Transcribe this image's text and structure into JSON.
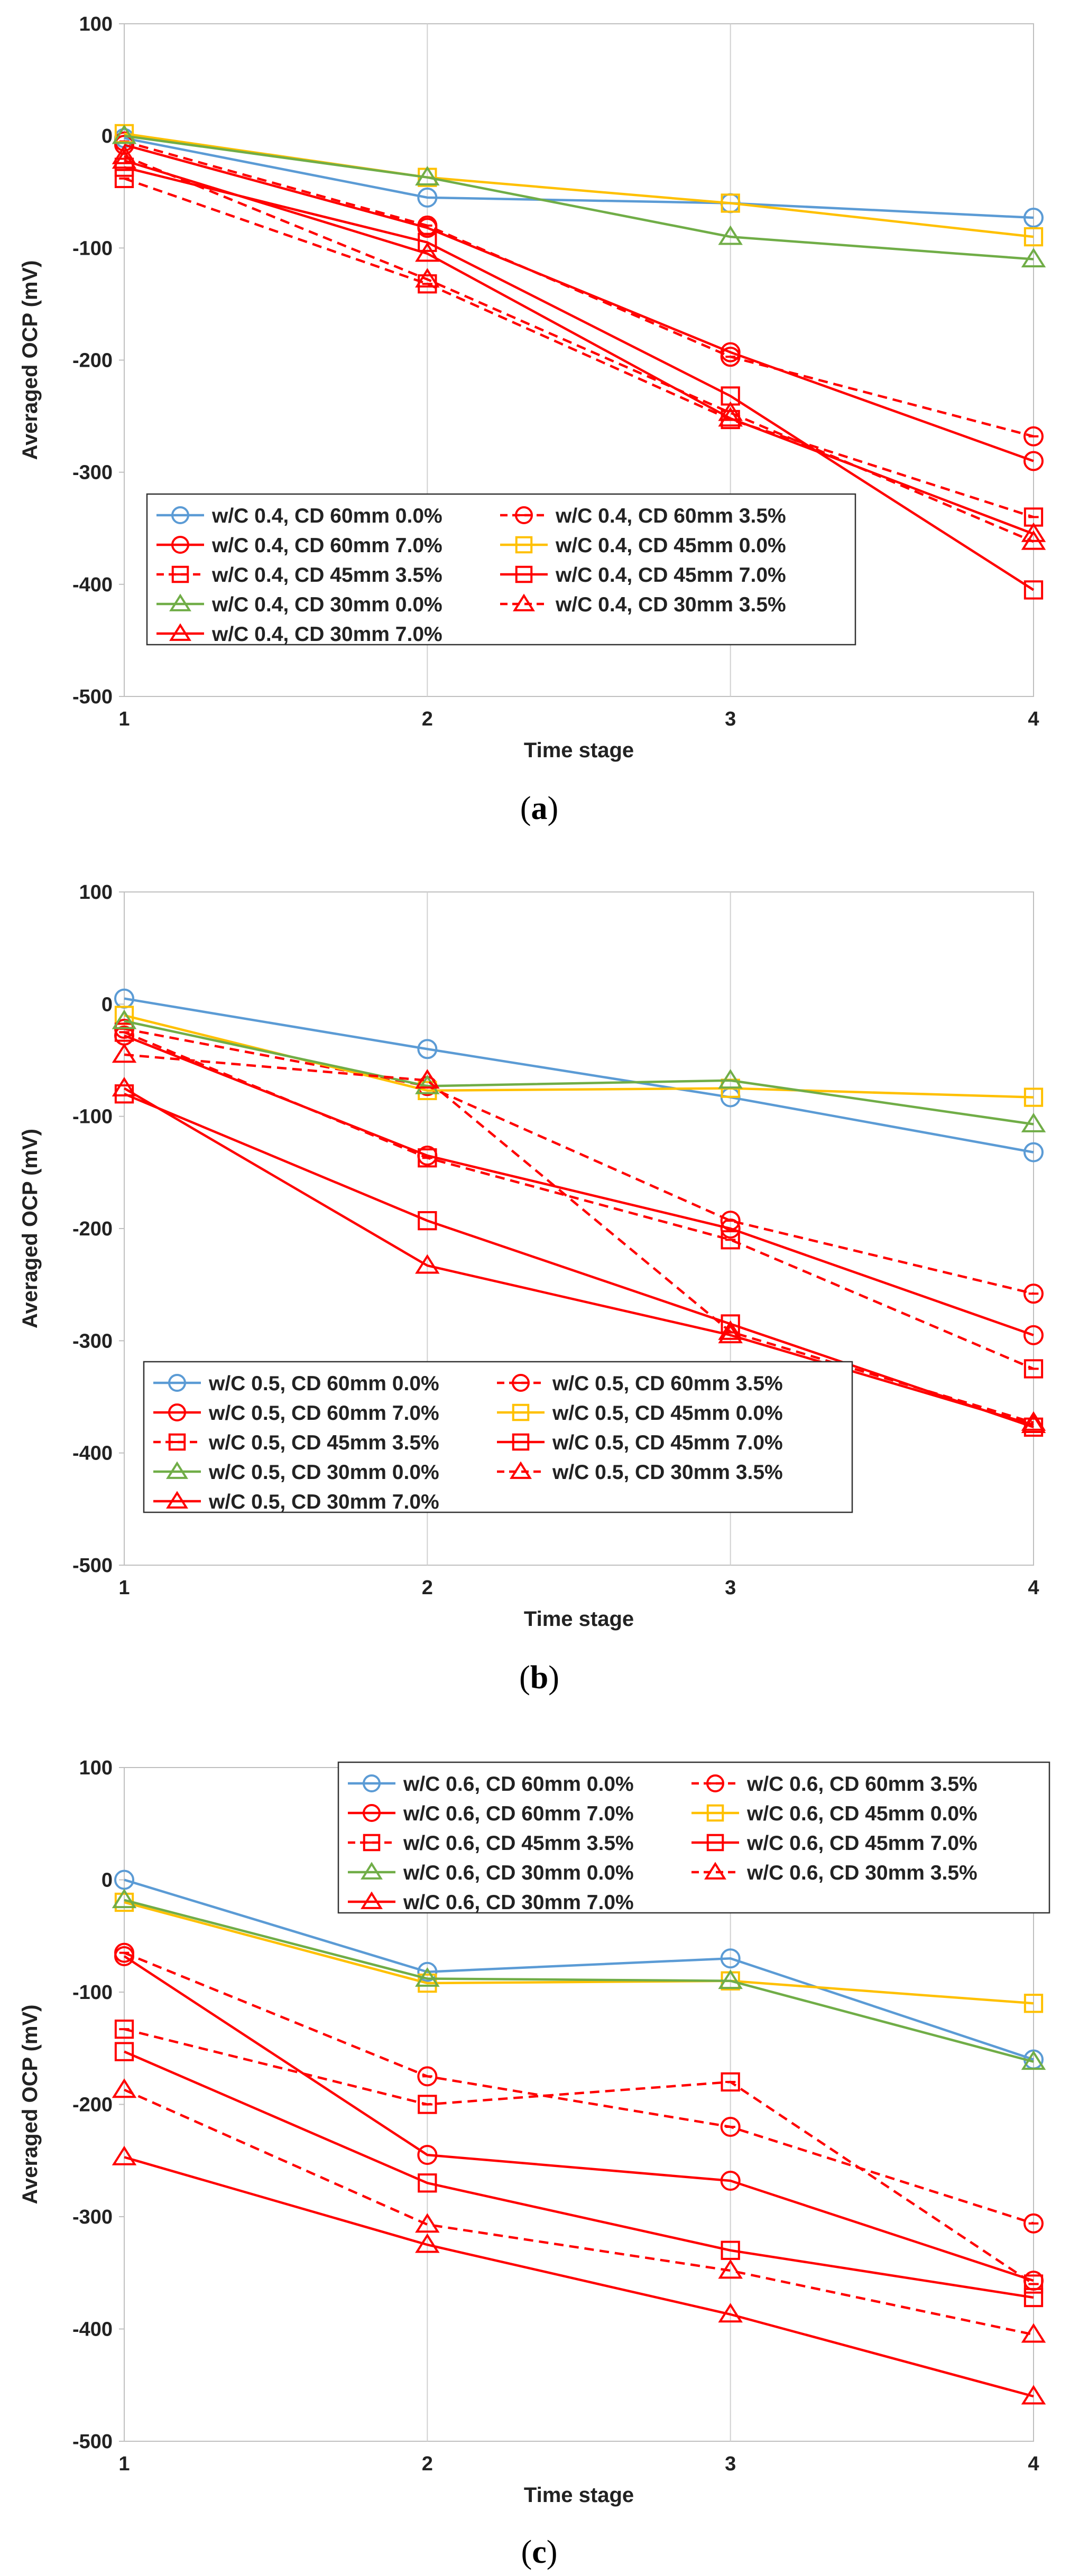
{
  "figure": {
    "captions": [
      "a",
      "b",
      "c"
    ]
  },
  "colors": {
    "blue": "#5b9bd5",
    "red": "#ff0000",
    "yellow": "#ffc000",
    "green": "#70ad47"
  },
  "chart_data": [
    {
      "id": "a",
      "type": "line",
      "title": "",
      "xlabel": "Time stage",
      "ylabel": "Averaged OCP (mV)",
      "x": [
        1,
        2,
        3,
        4
      ],
      "xlim": [
        1,
        4
      ],
      "ylim": [
        -500,
        100
      ],
      "yticks": [
        100,
        0,
        -100,
        -200,
        -300,
        -400,
        -500
      ],
      "ytick_labels": [
        "100",
        "0",
        "-100",
        "-200",
        "-300",
        "-400",
        "-500"
      ],
      "xtick_labels": [
        "1",
        "2",
        "3",
        "4"
      ],
      "grid": "vertical",
      "legend_position": "bottom-left",
      "series": [
        {
          "name": "w/C 0.4, CD 60mm 0.0%",
          "color": "blue",
          "marker": "circle",
          "dash": "solid",
          "values": [
            -2,
            -55,
            -60,
            -73
          ]
        },
        {
          "name": "w/C 0.4, CD 60mm 3.5%",
          "color": "red",
          "marker": "circle-dash",
          "dash": "dashed",
          "values": [
            -5,
            -80,
            -197,
            -268
          ]
        },
        {
          "name": "w/C 0.4, CD 60mm 7.0%",
          "color": "red",
          "marker": "circle",
          "dash": "solid",
          "values": [
            -8,
            -82,
            -193,
            -290
          ]
        },
        {
          "name": "w/C 0.4, CD 45mm 0.0%",
          "color": "yellow",
          "marker": "square",
          "dash": "solid",
          "values": [
            2,
            -37,
            -60,
            -90
          ]
        },
        {
          "name": "w/C 0.4, CD 45mm 3.5%",
          "color": "red",
          "marker": "square-dash",
          "dash": "dashed",
          "values": [
            -38,
            -132,
            -253,
            -340
          ]
        },
        {
          "name": "w/C 0.4, CD 45mm 7.0%",
          "color": "red",
          "marker": "square",
          "dash": "solid",
          "values": [
            -28,
            -95,
            -232,
            -405
          ]
        },
        {
          "name": "w/C 0.4, CD 30mm 0.0%",
          "color": "green",
          "marker": "triangle",
          "dash": "solid",
          "values": [
            0,
            -37,
            -90,
            -110
          ]
        },
        {
          "name": "w/C 0.4, CD 30mm 3.5%",
          "color": "red",
          "marker": "triangle",
          "dash": "dashed",
          "values": [
            -18,
            -128,
            -247,
            -362
          ]
        },
        {
          "name": "w/C 0.4, CD 30mm 7.0%",
          "color": "red",
          "marker": "triangle",
          "dash": "solid",
          "values": [
            -22,
            -105,
            -252,
            -355
          ]
        }
      ]
    },
    {
      "id": "b",
      "type": "line",
      "title": "",
      "xlabel": "Time stage",
      "ylabel": "Averaged OCP (mV)",
      "x": [
        1,
        2,
        3,
        4
      ],
      "xlim": [
        1,
        4
      ],
      "ylim": [
        -500,
        100
      ],
      "yticks": [
        100,
        0,
        -100,
        -200,
        -300,
        -400,
        -500
      ],
      "ytick_labels": [
        "100",
        "0",
        "-100",
        "-200",
        "-300",
        "-400",
        "-500"
      ],
      "xtick_labels": [
        "1",
        "2",
        "3",
        "4"
      ],
      "grid": "vertical",
      "legend_position": "bottom-left",
      "series": [
        {
          "name": "w/C 0.5, CD 60mm 0.0%",
          "color": "blue",
          "marker": "circle",
          "dash": "solid",
          "values": [
            5,
            -40,
            -83,
            -132
          ]
        },
        {
          "name": "w/C 0.5, CD 60mm 3.5%",
          "color": "red",
          "marker": "circle-dash",
          "dash": "dashed",
          "values": [
            -22,
            -73,
            -193,
            -258
          ]
        },
        {
          "name": "w/C 0.5, CD 60mm 7.0%",
          "color": "red",
          "marker": "circle",
          "dash": "solid",
          "values": [
            -28,
            -135,
            -200,
            -295
          ]
        },
        {
          "name": "w/C 0.5, CD 45mm 0.0%",
          "color": "yellow",
          "marker": "square",
          "dash": "solid",
          "values": [
            -10,
            -77,
            -75,
            -83
          ]
        },
        {
          "name": "w/C 0.5, CD 45mm 3.5%",
          "color": "red",
          "marker": "square-dash",
          "dash": "dashed",
          "values": [
            -25,
            -137,
            -210,
            -325
          ]
        },
        {
          "name": "w/C 0.5, CD 45mm 7.0%",
          "color": "red",
          "marker": "square",
          "dash": "solid",
          "values": [
            -80,
            -193,
            -285,
            -377
          ]
        },
        {
          "name": "w/C 0.5, CD 30mm 0.0%",
          "color": "green",
          "marker": "triangle",
          "dash": "solid",
          "values": [
            -15,
            -73,
            -68,
            -107
          ]
        },
        {
          "name": "w/C 0.5, CD 30mm 3.5%",
          "color": "red",
          "marker": "triangle",
          "dash": "dashed",
          "values": [
            -45,
            -68,
            -292,
            -373
          ]
        },
        {
          "name": "w/C 0.5, CD 30mm 7.0%",
          "color": "red",
          "marker": "triangle",
          "dash": "solid",
          "values": [
            -75,
            -233,
            -295,
            -375
          ]
        }
      ]
    },
    {
      "id": "c",
      "type": "line",
      "title": "",
      "xlabel": "Time stage",
      "ylabel": "Averaged OCP (mV)",
      "x": [
        1,
        2,
        3,
        4
      ],
      "xlim": [
        1,
        4
      ],
      "ylim": [
        -500,
        100
      ],
      "yticks": [
        100,
        0,
        -100,
        -200,
        -300,
        -400,
        -500
      ],
      "ytick_labels": [
        "100",
        "0",
        "-100",
        "-200",
        "-300",
        "-400",
        "-500"
      ],
      "xtick_labels": [
        "1",
        "2",
        "3",
        "4"
      ],
      "grid": "vertical",
      "legend_position": "top-right",
      "series": [
        {
          "name": "w/C 0.6, CD 60mm 0.0%",
          "color": "blue",
          "marker": "circle",
          "dash": "solid",
          "values": [
            0,
            -82,
            -70,
            -160
          ]
        },
        {
          "name": "w/C 0.6, CD 60mm 3.5%",
          "color": "red",
          "marker": "circle-dash",
          "dash": "dashed",
          "values": [
            -65,
            -175,
            -220,
            -306
          ]
        },
        {
          "name": "w/C 0.6, CD 60mm 7.0%",
          "color": "red",
          "marker": "circle",
          "dash": "solid",
          "values": [
            -68,
            -245,
            -268,
            -357
          ]
        },
        {
          "name": "w/C 0.6, CD 45mm 0.0%",
          "color": "yellow",
          "marker": "square",
          "dash": "solid",
          "values": [
            -20,
            -92,
            -90,
            -110
          ]
        },
        {
          "name": "w/C 0.6, CD 45mm 3.5%",
          "color": "red",
          "marker": "square-dash",
          "dash": "dashed",
          "values": [
            -133,
            -200,
            -180,
            -360
          ]
        },
        {
          "name": "w/C 0.6, CD 45mm 7.0%",
          "color": "red",
          "marker": "square",
          "dash": "solid",
          "values": [
            -153,
            -270,
            -330,
            -372
          ]
        },
        {
          "name": "w/C 0.6, CD 30mm 0.0%",
          "color": "green",
          "marker": "triangle",
          "dash": "solid",
          "values": [
            -18,
            -88,
            -90,
            -162
          ]
        },
        {
          "name": "w/C 0.6, CD 30mm 3.5%",
          "color": "red",
          "marker": "triangle",
          "dash": "dashed",
          "values": [
            -187,
            -307,
            -348,
            -405
          ]
        },
        {
          "name": "w/C 0.6, CD 30mm 7.0%",
          "color": "red",
          "marker": "triangle",
          "dash": "solid",
          "values": [
            -247,
            -325,
            -387,
            -460
          ]
        }
      ]
    }
  ]
}
